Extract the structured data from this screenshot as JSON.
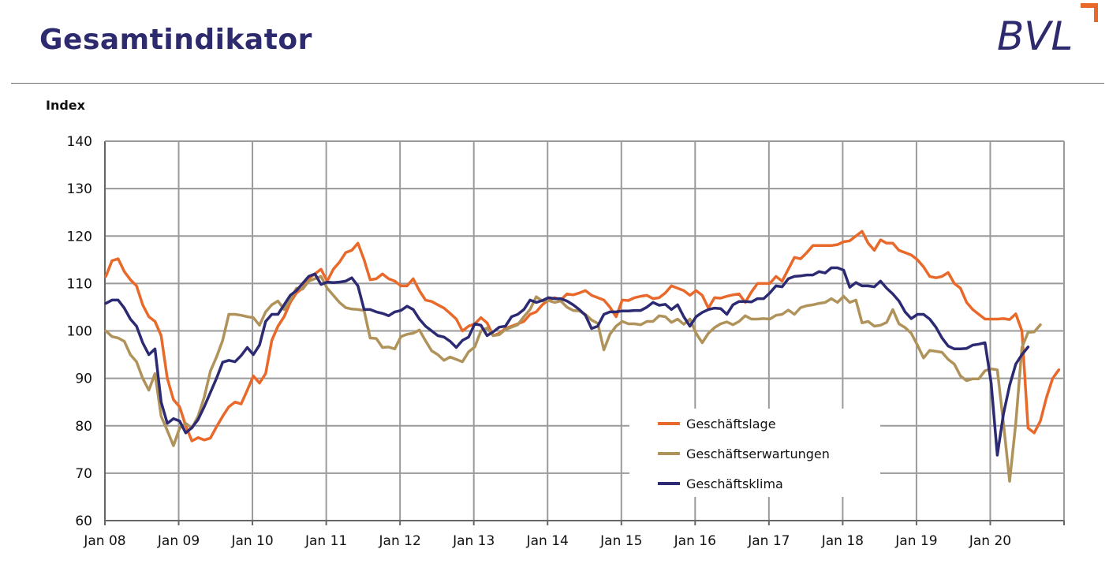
{
  "header": {
    "title": "Gesamtindikator",
    "logo_text": "BVL"
  },
  "colors": {
    "title": "#2e2a6e",
    "lage": "#e8692a",
    "erwartungen": "#b0935a",
    "klima": "#2b2a72",
    "logo_accent": "#e8692a",
    "grid": "#9a9a9a"
  },
  "chart_data": {
    "type": "line",
    "title": "Gesamtindikator",
    "ylabel": "Index",
    "xlabel": "",
    "ylim": [
      60,
      140
    ],
    "yticks": [
      60,
      70,
      80,
      90,
      100,
      110,
      120,
      130,
      140
    ],
    "x_start": "2008-01",
    "x_end": "2020-09",
    "x_ticks": [
      "Jan 08",
      "Jan 09",
      "Jan 10",
      "Jan 11",
      "Jan 12",
      "Jan 13",
      "Jan 14",
      "Jan 15",
      "Jan 16",
      "Jan 17",
      "Jan 18",
      "Jan 19",
      "Jan 20"
    ],
    "grid": true,
    "legend_position": "bottom-right",
    "series": [
      {
        "name": "Geschäftslage",
        "color": "#e8692a",
        "values": [
          111.5,
          114.8,
          115.2,
          112.5,
          110.8,
          109.5,
          105.5,
          103,
          102,
          99,
          90,
          85.5,
          84,
          80,
          76.8,
          77.5,
          77,
          77.4,
          79.8,
          82,
          84,
          85,
          84.6,
          87.5,
          90.5,
          89,
          91,
          98,
          101,
          103,
          106,
          108,
          109,
          111,
          112,
          113,
          110.5,
          113,
          114.5,
          116.5,
          117,
          118.5,
          115,
          110.8,
          111,
          112,
          111,
          110.5,
          109.5,
          109.5,
          111,
          108.5,
          106.5,
          106.2,
          105.5,
          104.8,
          103.7,
          102.5,
          100,
          101,
          101.5,
          102.8,
          101.7,
          99,
          99.5,
          100.5,
          101,
          101.5,
          102,
          103.5,
          104,
          105.5,
          106.5,
          107,
          106.5,
          107.8,
          107.6,
          108,
          108.5,
          107.5,
          107,
          106.5,
          105,
          103,
          106.5,
          106.4,
          107,
          107.3,
          107.5,
          106.8,
          107,
          108,
          109.5,
          109,
          108.5,
          107.5,
          108.5,
          107.5,
          104.8,
          107,
          106.9,
          107.3,
          107.6,
          107.8,
          106,
          108.2,
          110,
          110,
          110,
          111.5,
          110.5,
          113,
          115.5,
          115.2,
          116.5,
          118,
          118,
          118,
          118,
          118.2,
          118.8,
          119,
          120,
          121,
          118.5,
          117,
          119.2,
          118.5,
          118.5,
          117,
          116.5,
          116,
          115,
          113.5,
          111.5,
          111.2,
          111.5,
          112.3,
          110,
          109,
          106,
          104.5,
          103.5,
          102.5,
          102.5,
          102.5,
          102.6,
          102.4,
          103.6,
          100,
          79.5,
          78.5,
          81,
          86,
          90,
          91.8
        ]
      },
      {
        "name": "Geschäftserwartungen",
        "color": "#b0935a",
        "values": [
          100,
          98.8,
          98.5,
          97.8,
          95,
          93.5,
          90,
          87.5,
          91,
          82,
          79,
          75.8,
          79.5,
          80.5,
          79.5,
          82,
          86,
          91.5,
          94.5,
          98,
          103.5,
          103.5,
          103.3,
          103,
          102.8,
          101.2,
          104,
          105.5,
          106.3,
          104.5,
          106.5,
          109,
          108.8,
          110.5,
          111,
          111.5,
          109,
          107.5,
          106,
          104.9,
          104.6,
          104.5,
          104.3,
          98.5,
          98.4,
          96.5,
          96.6,
          96.2,
          98.8,
          99.3,
          99.5,
          100.2,
          97.9,
          95.8,
          95,
          93.8,
          94.5,
          94,
          93.5,
          95.6,
          96.6,
          100,
          100.6,
          99,
          99.2,
          100.3,
          100.8,
          101.3,
          103,
          104.5,
          107.2,
          106.3,
          106.4,
          106,
          106.3,
          105,
          104.3,
          104.2,
          103.5,
          102.3,
          101.6,
          96,
          99.3,
          101,
          102,
          101.5,
          101.5,
          101.3,
          102,
          102,
          103.2,
          103,
          101.8,
          102.5,
          101.4,
          102.5,
          99.5,
          97.5,
          99.5,
          100.7,
          101.5,
          101.9,
          101.3,
          102,
          103.2,
          102.5,
          102.5,
          102.6,
          102.5,
          103.3,
          103.5,
          104.4,
          103.5,
          104.9,
          105.3,
          105.5,
          105.8,
          106,
          106.8,
          106,
          107.3,
          106,
          106.5,
          101.7,
          102,
          101,
          101.2,
          101.8,
          104.5,
          101.5,
          100.7,
          99.5,
          97,
          94.3,
          95.9,
          95.7,
          95.5,
          94,
          93,
          90.5,
          89.5,
          89.9,
          89.9,
          91.6,
          92,
          91.8,
          80.5,
          68.3,
          80.5,
          96.5,
          99.7,
          99.8,
          101.3
        ]
      },
      {
        "name": "Geschäftsklima",
        "color": "#2b2a72",
        "values": [
          105.8,
          106.5,
          106.5,
          104.8,
          102.5,
          101,
          97.5,
          95,
          96.2,
          85,
          80.5,
          81.5,
          81,
          78.5,
          79.6,
          81.3,
          84,
          87,
          90,
          93.4,
          93.8,
          93.5,
          94.8,
          96.5,
          95,
          97,
          102,
          103.5,
          103.5,
          105.5,
          107.5,
          108.5,
          110,
          111.5,
          112,
          109.8,
          110.3,
          110.2,
          110.3,
          110.5,
          111.2,
          109.5,
          104.5,
          104.5,
          104,
          103.7,
          103.2,
          104,
          104.3,
          105.2,
          104.5,
          102.5,
          101,
          100,
          99,
          98.7,
          97.8,
          96.5,
          98,
          98.7,
          101.5,
          101.2,
          99,
          99.8,
          100.8,
          101,
          103,
          103.5,
          104.5,
          106.5,
          106,
          106.4,
          107,
          106.8,
          106.8,
          106.3,
          105.5,
          104.5,
          103.3,
          100.5,
          101,
          103.5,
          104,
          104,
          104.2,
          104.2,
          104.3,
          104.3,
          105,
          106,
          105.4,
          105.6,
          104.5,
          105.5,
          103,
          101,
          103,
          103.9,
          104.5,
          104.8,
          104.7,
          103.5,
          105.5,
          106.2,
          106.2,
          106.1,
          106.8,
          106.8,
          108,
          109.5,
          109.3,
          111,
          111.5,
          111.6,
          111.8,
          111.8,
          112.5,
          112.2,
          113.3,
          113.3,
          112.8,
          109.2,
          110.2,
          109.5,
          109.5,
          109.3,
          110.5,
          109,
          107.8,
          106.3,
          104,
          102.6,
          103.5,
          103.5,
          102.5,
          100.8,
          98.5,
          96.8,
          96.2,
          96.2,
          96.3,
          97,
          97.2,
          97.5,
          89,
          73.8,
          82.5,
          88.5,
          93,
          95,
          96.6
        ]
      }
    ]
  }
}
